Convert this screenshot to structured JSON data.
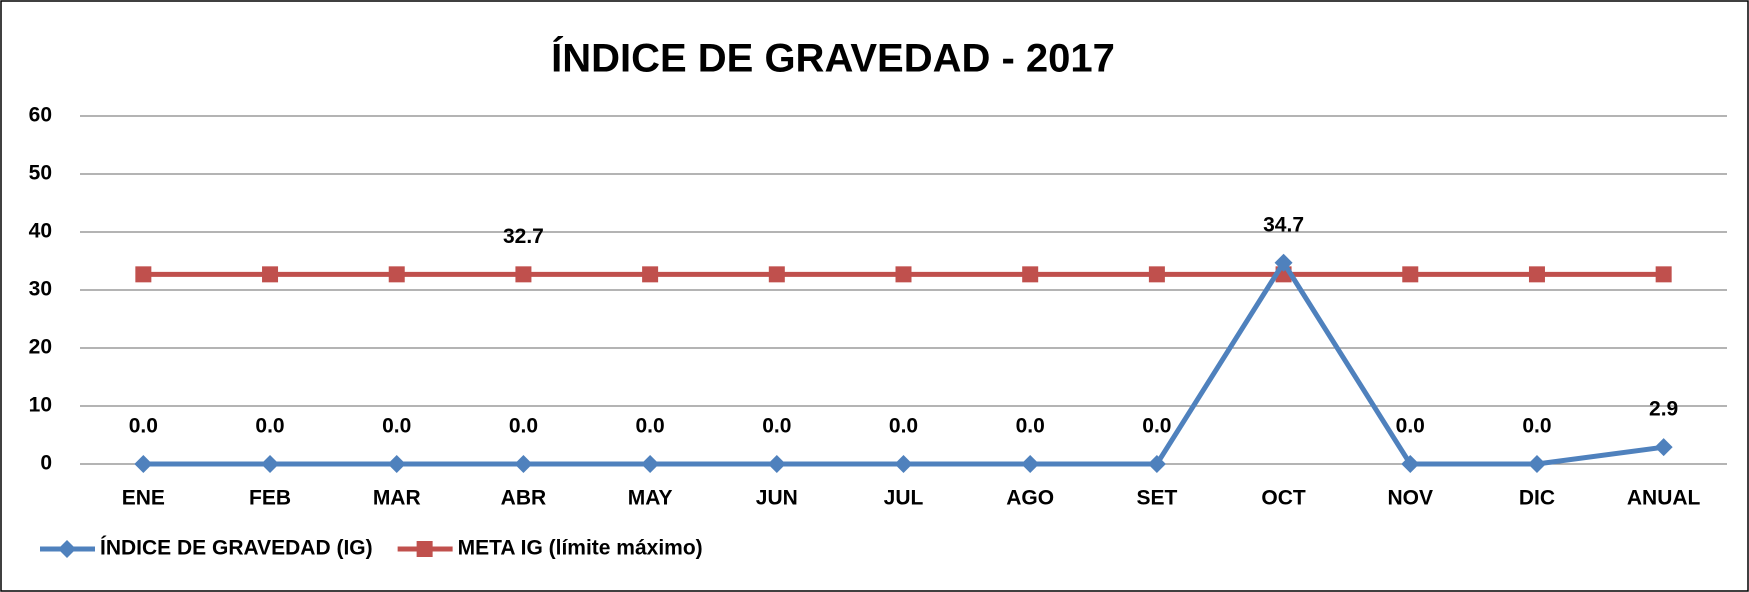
{
  "chart_data": {
    "type": "line",
    "title": "ÍNDICE DE GRAVEDAD - 2017",
    "categories": [
      "ENE",
      "FEB",
      "MAR",
      "ABR",
      "MAY",
      "JUN",
      "JUL",
      "AGO",
      "SET",
      "OCT",
      "NOV",
      "DIC",
      "ANUAL"
    ],
    "series": [
      {
        "name": "ÍNDICE DE GRAVEDAD (IG)",
        "color": "#4f81bd",
        "marker": "diamond",
        "values": [
          0,
          0,
          0,
          0,
          0,
          0,
          0,
          0,
          0,
          34.7,
          0,
          0,
          2.9
        ],
        "value_labels": [
          "0.0",
          "0.0",
          "0.0",
          "0.0",
          "0.0",
          "0.0",
          "0.0",
          "0.0",
          "0.0",
          "34.7",
          "0.0",
          "0.0",
          "2.9"
        ]
      },
      {
        "name": "META IG (límite máximo)",
        "color": "#c0504d",
        "marker": "square",
        "values": [
          32.7,
          32.7,
          32.7,
          32.7,
          32.7,
          32.7,
          32.7,
          32.7,
          32.7,
          32.7,
          32.7,
          32.7,
          32.7
        ],
        "value_labels": [
          null,
          null,
          null,
          "32.7",
          null,
          null,
          null,
          null,
          null,
          null,
          null,
          null,
          null
        ]
      }
    ],
    "ylim": [
      0,
      60
    ],
    "yticks": [
      0,
      10,
      20,
      30,
      40,
      50,
      60
    ],
    "grid": true,
    "legend": "bottom-left"
  }
}
